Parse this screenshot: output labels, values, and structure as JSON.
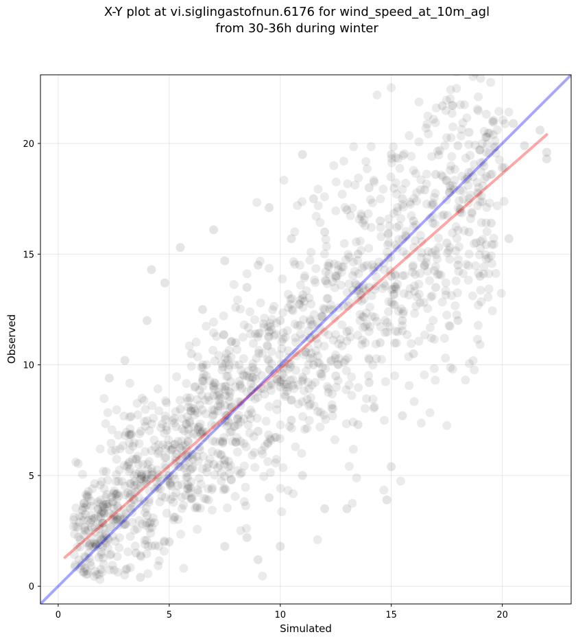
{
  "chart_data": {
    "type": "scatter",
    "title": "X-Y plot at vi.siglingastofnun.6176 for wind_speed_at_10m_agl",
    "subtitle": "from 30-36h during winter",
    "xlabel": "Simulated",
    "ylabel": "Observed",
    "xlim": [
      -0.8,
      23.1
    ],
    "ylim": [
      -0.8,
      23.1
    ],
    "xticks": [
      0,
      5,
      10,
      15,
      20
    ],
    "yticks": [
      0,
      5,
      10,
      15,
      20
    ],
    "grid": true,
    "point_color": "#000000",
    "point_alpha": 0.1,
    "series": [
      {
        "type": "scatter",
        "points_sample": [
          [
            1.0,
            2.1
          ],
          [
            1.5,
            3.0
          ],
          [
            2.0,
            1.8
          ],
          [
            2.3,
            9.4
          ],
          [
            2.5,
            4.2
          ],
          [
            3.0,
            2.8
          ],
          [
            3.0,
            10.2
          ],
          [
            3.2,
            5.6
          ],
          [
            3.5,
            1.5
          ],
          [
            3.7,
            0.4
          ],
          [
            4.0,
            12.0
          ],
          [
            4.0,
            3.2
          ],
          [
            4.2,
            14.3
          ],
          [
            4.5,
            6.0
          ],
          [
            4.8,
            13.7
          ],
          [
            5.0,
            5.0
          ],
          [
            5.0,
            2.0
          ],
          [
            5.5,
            15.3
          ],
          [
            5.5,
            8.0
          ],
          [
            6.0,
            10.5
          ],
          [
            6.0,
            4.0
          ],
          [
            6.5,
            12.5
          ],
          [
            6.5,
            7.0
          ],
          [
            7.0,
            16.1
          ],
          [
            7.0,
            9.0
          ],
          [
            7.0,
            5.5
          ],
          [
            7.5,
            14.7
          ],
          [
            7.5,
            1.8
          ],
          [
            8.0,
            11.0
          ],
          [
            8.0,
            6.5
          ],
          [
            8.5,
            13.5
          ],
          [
            8.5,
            9.5
          ],
          [
            8.5,
            2.2
          ],
          [
            9.0,
            14.5
          ],
          [
            9.0,
            7.0
          ],
          [
            9.0,
            1.2
          ],
          [
            9.5,
            17.1
          ],
          [
            9.5,
            11.5
          ],
          [
            9.5,
            4.0
          ],
          [
            10.0,
            12.0
          ],
          [
            10.0,
            9.0
          ],
          [
            10.0,
            1.8
          ],
          [
            10.5,
            15.7
          ],
          [
            10.5,
            7.5
          ],
          [
            11.0,
            19.5
          ],
          [
            11.0,
            13.0
          ],
          [
            11.0,
            5.0
          ],
          [
            11.5,
            17.5
          ],
          [
            11.5,
            10.0
          ],
          [
            12.0,
            16.0
          ],
          [
            12.0,
            12.5
          ],
          [
            12.0,
            3.5
          ],
          [
            12.5,
            14.0
          ],
          [
            12.5,
            9.5
          ],
          [
            13.0,
            17.0
          ],
          [
            13.0,
            11.5
          ],
          [
            13.0,
            3.5
          ],
          [
            13.5,
            15.0
          ],
          [
            13.5,
            7.3
          ],
          [
            14.0,
            18.0
          ],
          [
            14.0,
            13.5
          ],
          [
            14.0,
            9.2
          ],
          [
            14.5,
            16.5
          ],
          [
            14.5,
            11.0
          ],
          [
            14.8,
            3.9
          ],
          [
            15.0,
            19.5
          ],
          [
            15.0,
            14.0
          ],
          [
            15.0,
            5.4
          ],
          [
            15.5,
            17.5
          ],
          [
            15.5,
            12.0
          ],
          [
            15.5,
            7.7
          ],
          [
            16.0,
            16.5
          ],
          [
            16.0,
            10.5
          ],
          [
            16.5,
            17.9
          ],
          [
            16.5,
            14.5
          ],
          [
            17.0,
            18.6
          ],
          [
            17.0,
            13.5
          ],
          [
            17.3,
            21.7
          ],
          [
            17.5,
            15.5
          ],
          [
            18.0,
            19.9
          ],
          [
            18.0,
            14.5
          ],
          [
            18.0,
            12.0
          ],
          [
            18.5,
            20.5
          ],
          [
            18.5,
            16.0
          ],
          [
            19.0,
            19.7
          ],
          [
            19.0,
            14.0
          ],
          [
            19.3,
            20.3
          ],
          [
            19.5,
            16.4
          ],
          [
            20.0,
            18.9
          ],
          [
            20.3,
            15.7
          ],
          [
            20.5,
            20.9
          ],
          [
            21.0,
            19.9
          ],
          [
            21.7,
            20.6
          ],
          [
            22.0,
            19.6
          ],
          [
            22.0,
            19.3
          ]
        ]
      }
    ],
    "lines": [
      {
        "name": "",
        "color": "#ff0000",
        "alpha": 0.35,
        "x": [
          0.3,
          22.0
        ],
        "y": [
          1.3,
          20.4
        ]
      },
      {
        "name": "",
        "color": "#0000ff",
        "alpha": 0.35,
        "x": [
          -0.8,
          23.1
        ],
        "y": [
          -0.8,
          23.1
        ]
      }
    ]
  }
}
